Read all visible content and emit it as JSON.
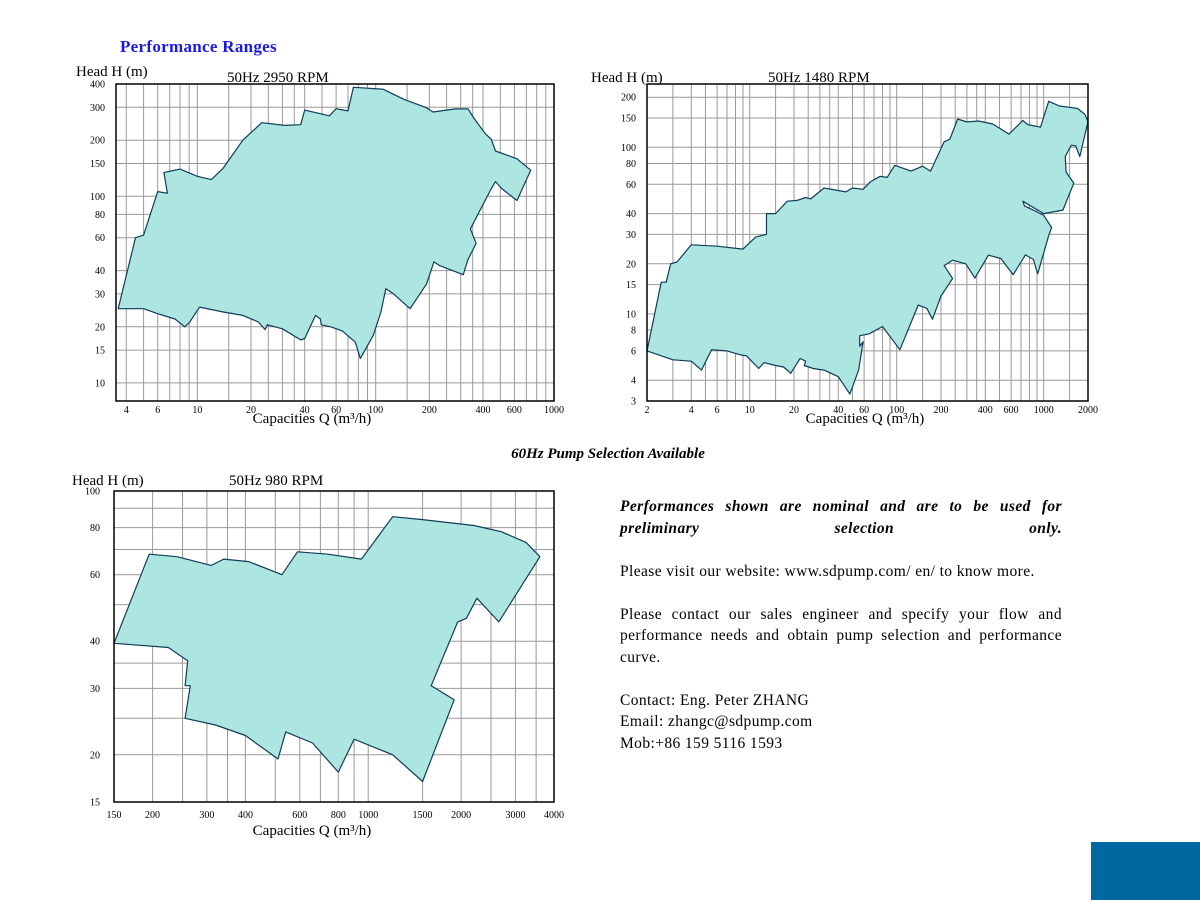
{
  "page_title": "Performance Ranges",
  "selection_note": "60Hz  Pump Selection Available",
  "notes": {
    "preliminary": "Performances shown are nominal and are to be used for preliminary selection only.",
    "website": "Please visit our website: www.sdpump.com/ en/ to know more.",
    "contact_request": "Please contact our sales engineer and specify your flow and performance needs and obtain pump selection and performance curve.",
    "contact": "Contact: Eng. Peter ZHANG",
    "email": "Email: zhangc@sdpump.com",
    "mobile": "Mob:+86  159 5116 1593"
  },
  "colors": {
    "fill": "#ade6e0",
    "stroke": "#0f3c5a",
    "grid": "#9a9a9a",
    "title": "#1a1ae6",
    "corner": "#0068a0"
  },
  "chart_data": [
    {
      "type": "area",
      "title": "50Hz  2950 RPM",
      "ylabel": "Head H (m)",
      "xlabel": "Capacities Q (m³/h)",
      "xscale": "log",
      "yscale": "log",
      "xlim": [
        3.5,
        1000
      ],
      "ylim": [
        8,
        400
      ],
      "xticks": [
        4,
        6,
        10,
        20,
        40,
        60,
        100,
        200,
        400,
        600,
        1000
      ],
      "xtick_labels": [
        "4",
        "6",
        "10",
        "20",
        "40",
        "60",
        "100",
        "200",
        "400",
        "600",
        "1000"
      ],
      "yticks": [
        10,
        15,
        20,
        30,
        40,
        60,
        80,
        100,
        150,
        200,
        300,
        400
      ],
      "ytick_labels": [
        "10",
        "15",
        "20",
        "30",
        "40",
        "60",
        "80",
        "100",
        "150",
        "200",
        "300",
        "400"
      ],
      "xgrid": [
        4,
        5,
        6,
        7,
        8,
        9,
        10,
        15,
        20,
        25,
        30,
        35,
        40,
        50,
        60,
        70,
        80,
        90,
        100,
        150,
        200,
        250,
        300,
        350,
        400,
        500,
        600,
        700,
        800,
        900,
        1000
      ],
      "ygrid": [
        8,
        10,
        15,
        20,
        30,
        40,
        60,
        80,
        100,
        150,
        200,
        300,
        400
      ],
      "region": [
        [
          3.6,
          25
        ],
        [
          5,
          25
        ],
        [
          6,
          23.5
        ],
        [
          7.5,
          22
        ],
        [
          8.5,
          20
        ],
        [
          9,
          21
        ],
        [
          10.3,
          25.5
        ],
        [
          14,
          24
        ],
        [
          18,
          23
        ],
        [
          22,
          21.2
        ],
        [
          24,
          19.3
        ],
        [
          24.7,
          20.5
        ],
        [
          30,
          19.5
        ],
        [
          38,
          17
        ],
        [
          40,
          17.3
        ],
        [
          46,
          23
        ],
        [
          49,
          22
        ],
        [
          49.5,
          20.5
        ],
        [
          56,
          20
        ],
        [
          65,
          19
        ],
        [
          77,
          16.5
        ],
        [
          82,
          13.5
        ],
        [
          97,
          18
        ],
        [
          107,
          24
        ],
        [
          114,
          32
        ],
        [
          126,
          30
        ],
        [
          156,
          25
        ],
        [
          193,
          34
        ],
        [
          212,
          44.5
        ],
        [
          229,
          42.5
        ],
        [
          310,
          38
        ],
        [
          328,
          45.5
        ],
        [
          366,
          56
        ],
        [
          340,
          67
        ],
        [
          445,
          110
        ],
        [
          470,
          120
        ],
        [
          510,
          110
        ],
        [
          620,
          95
        ],
        [
          740,
          138
        ],
        [
          620,
          159
        ],
        [
          470,
          175
        ],
        [
          445,
          202
        ],
        [
          410,
          218
        ],
        [
          355,
          263
        ],
        [
          330,
          294
        ],
        [
          280,
          294
        ],
        [
          210,
          283
        ],
        [
          190,
          300
        ],
        [
          145,
          330
        ],
        [
          110,
          375
        ],
        [
          75,
          384
        ],
        [
          70,
          287
        ],
        [
          60,
          295
        ],
        [
          55,
          270
        ],
        [
          40,
          290
        ],
        [
          38,
          242
        ],
        [
          31,
          240
        ],
        [
          23,
          248
        ],
        [
          18,
          200
        ],
        [
          14,
          142
        ],
        [
          12,
          123
        ],
        [
          10,
          128
        ],
        [
          8,
          140
        ],
        [
          6.5,
          134
        ],
        [
          6.8,
          104
        ],
        [
          6,
          106
        ],
        [
          5,
          62
        ],
        [
          4.5,
          60
        ]
      ]
    },
    {
      "type": "area",
      "title": "50Hz  1480 RPM",
      "ylabel": "Head H (m)",
      "xlabel": "Capacities Q (m³/h)",
      "xscale": "log",
      "yscale": "log",
      "xlim": [
        2,
        2000
      ],
      "ylim": [
        3,
        240
      ],
      "xticks": [
        2,
        4,
        6,
        10,
        20,
        40,
        60,
        100,
        200,
        400,
        600,
        1000,
        2000
      ],
      "xtick_labels": [
        "2",
        "4",
        "6",
        "10",
        "20",
        "40",
        "60",
        "100",
        "200",
        "400",
        "600",
        "1000",
        "2000"
      ],
      "yticks": [
        3,
        4,
        6,
        8,
        10,
        15,
        20,
        30,
        40,
        60,
        80,
        100,
        150,
        200
      ],
      "ytick_labels": [
        "3",
        "4",
        "6",
        "8",
        "10",
        "15",
        "20",
        "30",
        "40",
        "60",
        "80",
        "100",
        "150",
        "200"
      ],
      "xgrid": [
        2,
        3,
        4,
        5,
        6,
        7,
        8,
        9,
        10,
        15,
        20,
        25,
        30,
        35,
        40,
        50,
        60,
        70,
        80,
        90,
        100,
        150,
        200,
        250,
        300,
        350,
        400,
        500,
        600,
        700,
        800,
        900,
        1000,
        1500,
        2000
      ],
      "ygrid": [
        3,
        4,
        6,
        8,
        10,
        15,
        20,
        30,
        40,
        60,
        80,
        100,
        150,
        200
      ],
      "region": [
        [
          2,
          6
        ],
        [
          3,
          5.3
        ],
        [
          4,
          5.2
        ],
        [
          4.7,
          4.6
        ],
        [
          5.5,
          6.1
        ],
        [
          7,
          6
        ],
        [
          8.5,
          5.7
        ],
        [
          9.5,
          5.6
        ],
        [
          11.5,
          4.7
        ],
        [
          12.5,
          5.1
        ],
        [
          15,
          4.9
        ],
        [
          17,
          4.8
        ],
        [
          19,
          4.4
        ],
        [
          22,
          5.4
        ],
        [
          24,
          5.2
        ],
        [
          23.5,
          4.9
        ],
        [
          27,
          4.7
        ],
        [
          32,
          4.6
        ],
        [
          40,
          4.2
        ],
        [
          48,
          3.3
        ],
        [
          55,
          4.6
        ],
        [
          59,
          6.8
        ],
        [
          56,
          6.4
        ],
        [
          56,
          7.4
        ],
        [
          65,
          7.6
        ],
        [
          80,
          8.4
        ],
        [
          105,
          6.1
        ],
        [
          140,
          11.3
        ],
        [
          160,
          10.8
        ],
        [
          175,
          9.3
        ],
        [
          200,
          12.8
        ],
        [
          240,
          16.3
        ],
        [
          210,
          19.5
        ],
        [
          240,
          21
        ],
        [
          295,
          20
        ],
        [
          340,
          16.4
        ],
        [
          420,
          22.5
        ],
        [
          510,
          21.5
        ],
        [
          620,
          17.2
        ],
        [
          750,
          22.6
        ],
        [
          850,
          21.2
        ],
        [
          910,
          17.4
        ],
        [
          1080,
          29.5
        ],
        [
          1130,
          33
        ],
        [
          1000,
          39
        ],
        [
          850,
          42
        ],
        [
          740,
          44.5
        ],
        [
          720,
          47.5
        ],
        [
          1000,
          40
        ],
        [
          1350,
          42
        ],
        [
          1600,
          61
        ],
        [
          1420,
          71
        ],
        [
          1400,
          88
        ],
        [
          1540,
          103
        ],
        [
          1650,
          102
        ],
        [
          1760,
          88
        ],
        [
          2000,
          143
        ],
        [
          1900,
          158
        ],
        [
          1700,
          171
        ],
        [
          1500,
          174
        ],
        [
          1280,
          177
        ],
        [
          1080,
          189
        ],
        [
          950,
          132
        ],
        [
          780,
          137
        ],
        [
          720,
          145
        ],
        [
          580,
          120
        ],
        [
          450,
          138
        ],
        [
          360,
          144
        ],
        [
          300,
          142
        ],
        [
          260,
          148
        ],
        [
          230,
          112
        ],
        [
          210,
          108
        ],
        [
          170,
          72
        ],
        [
          150,
          77
        ],
        [
          125,
          72
        ],
        [
          97,
          78
        ],
        [
          86,
          66
        ],
        [
          77,
          67
        ],
        [
          66,
          62
        ],
        [
          59,
          56
        ],
        [
          50,
          57
        ],
        [
          45,
          54
        ],
        [
          32,
          57
        ],
        [
          26,
          49
        ],
        [
          24,
          50
        ],
        [
          21,
          48
        ],
        [
          18,
          47.5
        ],
        [
          15,
          40
        ],
        [
          13,
          40
        ],
        [
          13,
          30
        ],
        [
          11,
          29
        ],
        [
          9,
          24.5
        ],
        [
          6,
          25.5
        ],
        [
          4,
          26
        ],
        [
          3.2,
          20.5
        ],
        [
          2.9,
          20
        ],
        [
          2.7,
          15.5
        ],
        [
          2.5,
          15.5
        ]
      ]
    },
    {
      "type": "area",
      "title": "50Hz  980 RPM",
      "ylabel": "Head H (m)",
      "xlabel": "Capacities Q (m³/h)",
      "xscale": "log",
      "yscale": "log",
      "xlim": [
        150,
        4000
      ],
      "ylim": [
        15,
        100
      ],
      "xticks": [
        150,
        200,
        300,
        400,
        600,
        800,
        1000,
        1500,
        2000,
        3000,
        4000
      ],
      "xtick_labels": [
        "150",
        "200",
        "300",
        "400",
        "600",
        "800",
        "1000",
        "1500",
        "2000",
        "3000",
        "4000"
      ],
      "yticks": [
        15,
        20,
        30,
        40,
        60,
        80,
        100
      ],
      "ytick_labels": [
        "15",
        "20",
        "30",
        "40",
        "60",
        "80",
        "100"
      ],
      "xgrid": [
        150,
        200,
        250,
        300,
        350,
        400,
        500,
        600,
        700,
        800,
        900,
        1000,
        1500,
        2000,
        2500,
        3000,
        3500,
        4000
      ],
      "ygrid": [
        15,
        20,
        25,
        30,
        35,
        40,
        50,
        60,
        70,
        80,
        90,
        100
      ],
      "region": [
        [
          150,
          39.5
        ],
        [
          225,
          38.5
        ],
        [
          260,
          35.5
        ],
        [
          255,
          30.5
        ],
        [
          265,
          30.5
        ],
        [
          255,
          25
        ],
        [
          320,
          24
        ],
        [
          400,
          22.5
        ],
        [
          510,
          19.5
        ],
        [
          540,
          23
        ],
        [
          660,
          21.5
        ],
        [
          800,
          18
        ],
        [
          900,
          22
        ],
        [
          1200,
          20
        ],
        [
          1500,
          17
        ],
        [
          1900,
          28
        ],
        [
          1600,
          30.5
        ],
        [
          1950,
          45
        ],
        [
          2080,
          46
        ],
        [
          2250,
          52
        ],
        [
          2650,
          45
        ],
        [
          3600,
          67
        ],
        [
          3250,
          73
        ],
        [
          2700,
          78
        ],
        [
          2200,
          81
        ],
        [
          1500,
          84
        ],
        [
          1200,
          85.5
        ],
        [
          950,
          66
        ],
        [
          740,
          68
        ],
        [
          590,
          69
        ],
        [
          525,
          60
        ],
        [
          410,
          65
        ],
        [
          340,
          66
        ],
        [
          310,
          63.5
        ],
        [
          240,
          67
        ],
        [
          195,
          68
        ]
      ]
    }
  ]
}
